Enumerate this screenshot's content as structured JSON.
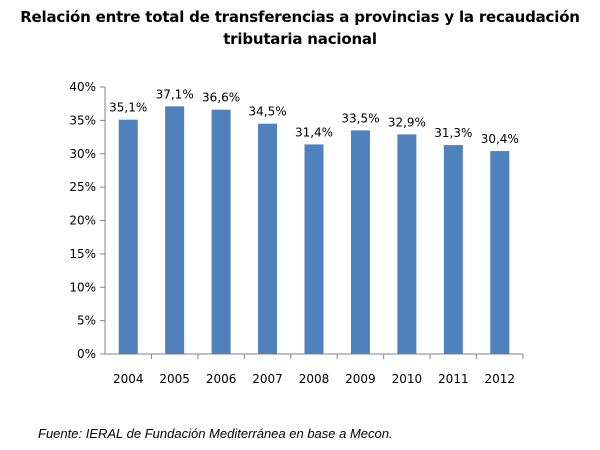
{
  "chart_data": {
    "type": "bar",
    "title": [
      "Relación entre total de transferencias a provincias y la recaudación",
      "tributaria nacional"
    ],
    "xlabel": "",
    "ylabel": "",
    "categories": [
      "2004",
      "2005",
      "2006",
      "2007",
      "2008",
      "2009",
      "2010",
      "2011",
      "2012"
    ],
    "values": [
      35.1,
      37.1,
      36.6,
      34.5,
      31.4,
      33.5,
      32.9,
      31.3,
      30.4
    ],
    "data_labels": [
      "35,1%",
      "37,1%",
      "36,6%",
      "34,5%",
      "31,4%",
      "33,5%",
      "32,9%",
      "31,3%",
      "30,4%"
    ],
    "ylim": [
      0,
      40
    ],
    "yticks": [
      0,
      5,
      10,
      15,
      20,
      25,
      30,
      35,
      40
    ],
    "ytick_labels": [
      "0%",
      "5%",
      "10%",
      "15%",
      "20%",
      "25%",
      "30%",
      "35%",
      "40%"
    ],
    "grid": false,
    "legend": "none",
    "bar_color": "#4F81BD",
    "axis_color": "#868686"
  },
  "source": "Fuente: IERAL de Fundación Mediterránea en base a Mecon."
}
